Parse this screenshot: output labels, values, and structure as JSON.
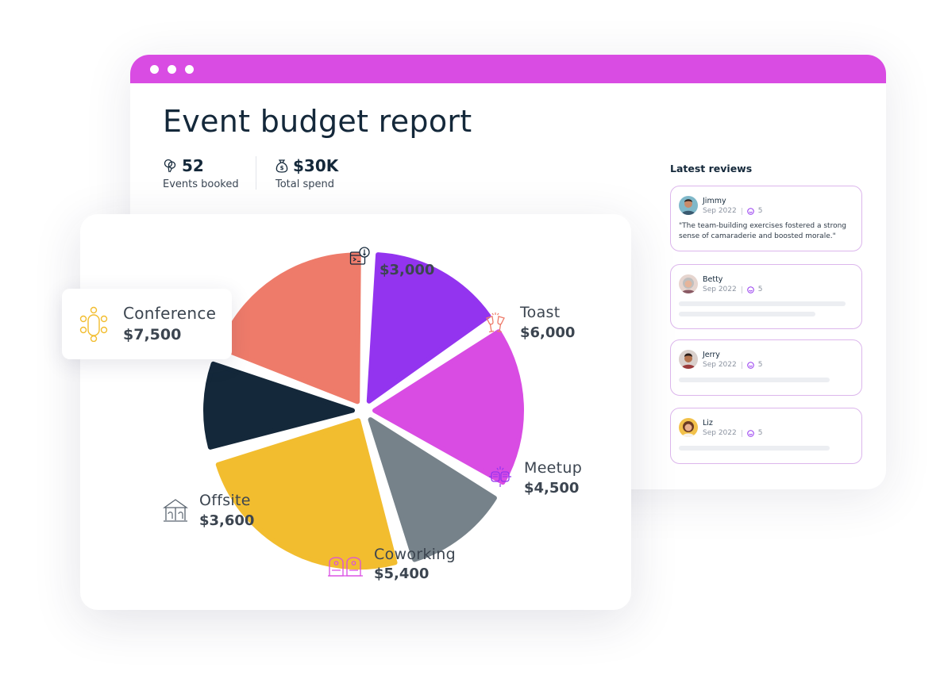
{
  "window": {
    "title": "Event budget report"
  },
  "stats": [
    {
      "value": "52",
      "label": "Events booked",
      "icon": "balloons-icon"
    },
    {
      "value": "$30K",
      "label": "Total spend",
      "icon": "money-bag-icon"
    }
  ],
  "reviews": {
    "title": "Latest reviews",
    "items": [
      {
        "name": "Jimmy",
        "date": "Sep 2022",
        "rating": "5",
        "text": "\"The team-building exercises fostered a strong sense of camaraderie and boosted morale.\""
      },
      {
        "name": "Betty",
        "date": "Sep 2022",
        "rating": "5"
      },
      {
        "name": "Jerry",
        "date": "Sep 2022",
        "rating": "5"
      },
      {
        "name": "Liz",
        "date": "Sep 2022",
        "rating": "5"
      }
    ]
  },
  "colors": {
    "accent": "#d94ce3",
    "review_border": "#dcb6ec"
  },
  "chart_data": {
    "type": "pie",
    "title": "",
    "slices": [
      {
        "label": "",
        "value": 3000,
        "display": "$3,000",
        "color": "#14283a",
        "icon": "web-terminal-icon"
      },
      {
        "label": "Toast",
        "value": 6000,
        "display": "$6,000",
        "color": "#ee7b6a",
        "icon": "toast-glasses-icon"
      },
      {
        "label": "Meetup",
        "value": 4500,
        "display": "$4,500",
        "color": "#9334ef",
        "icon": "fist-bump-icon"
      },
      {
        "label": "Coworking",
        "value": 5400,
        "display": "$5,400",
        "color": "#d94ce3",
        "icon": "coworking-booths-icon"
      },
      {
        "label": "Offsite",
        "value": 3600,
        "display": "$3,600",
        "color": "#76828a",
        "icon": "gazebo-icon"
      },
      {
        "label": "Conference",
        "value": 7500,
        "display": "$7,500",
        "color": "#f2bd2f",
        "icon": "conference-table-icon"
      }
    ]
  }
}
